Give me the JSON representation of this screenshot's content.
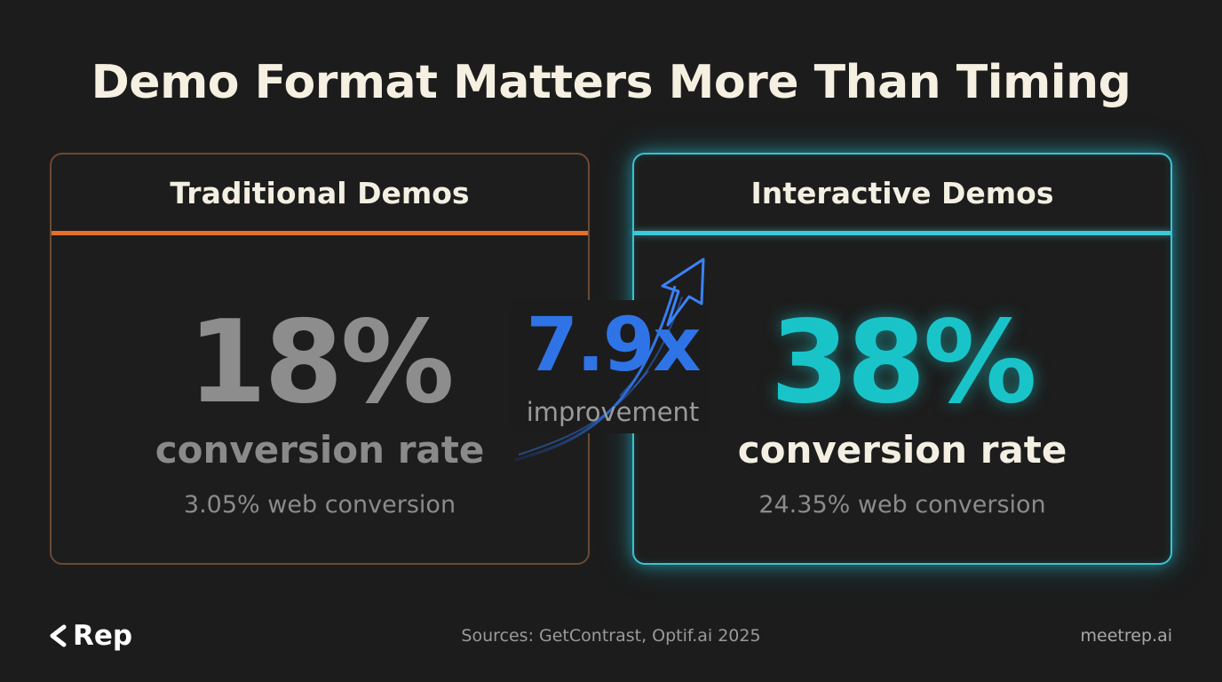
{
  "title": "Demo Format Matters More Than Timing",
  "left_card": {
    "header": "Traditional Demos",
    "value": "18%",
    "value_label": "conversion rate",
    "subtext": "3.05% web conversion",
    "accent_color": "#e4702c"
  },
  "right_card": {
    "header": "Interactive Demos",
    "value": "38%",
    "value_label": "conversion rate",
    "subtext": "24.35% web conversion",
    "accent_color": "#19c4c9"
  },
  "comparison": {
    "multiplier": "7.9x",
    "label": "improvement",
    "color": "#2f74e6",
    "icon": "up-arrow-icon"
  },
  "footer": {
    "logo_text": "Rep",
    "logo_icon": "chevron-left-icon",
    "sources": "Sources: GetContrast, Optif.ai 2025",
    "site": "meetrep.ai"
  }
}
